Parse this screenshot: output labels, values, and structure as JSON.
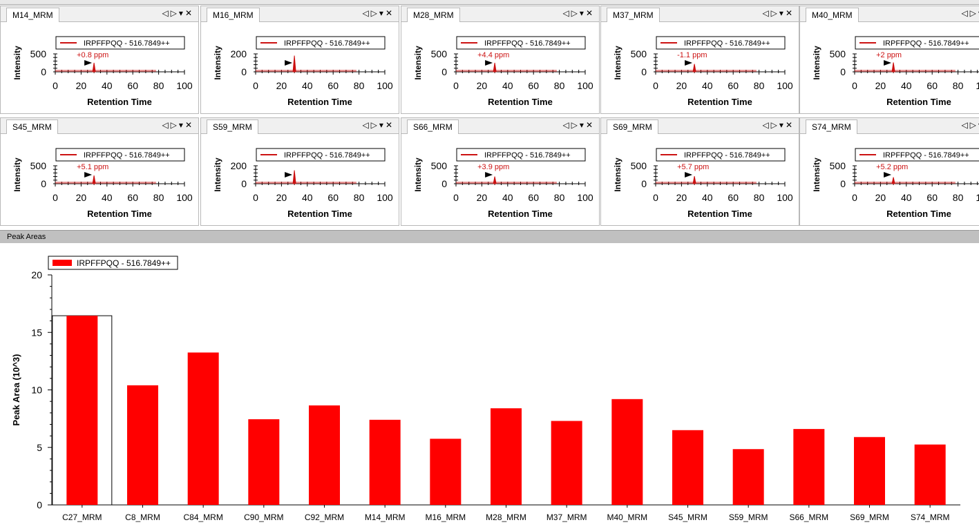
{
  "chromatograms": {
    "legend": "IRPFFPQQ - 516.7849++",
    "ylabel": "Intensity",
    "xlabel": "Retention Time",
    "xticks": [
      "0",
      "20",
      "40",
      "60",
      "80",
      "100"
    ],
    "series_color": "#cc1111",
    "panels": [
      {
        "name": "M14_MRM",
        "ymax": "500",
        "ppm": "+0.8 ppm",
        "peak_rt": 30,
        "peak_height": 250
      },
      {
        "name": "M16_MRM",
        "ymax": "200",
        "ppm": "",
        "peak_rt": 30,
        "peak_height": 180
      },
      {
        "name": "M28_MRM",
        "ymax": "500",
        "ppm": "+4.4 ppm",
        "peak_rt": 30,
        "peak_height": 250
      },
      {
        "name": "M37_MRM",
        "ymax": "500",
        "ppm": "-1.1 ppm",
        "peak_rt": 30,
        "peak_height": 220
      },
      {
        "name": "M40_MRM",
        "ymax": "500",
        "ppm": "+2 ppm",
        "peak_rt": 30,
        "peak_height": 260
      },
      {
        "name": "S45_MRM",
        "ymax": "500",
        "ppm": "+5.1 ppm",
        "peak_rt": 30,
        "peak_height": 230
      },
      {
        "name": "S59_MRM",
        "ymax": "200",
        "ppm": "",
        "peak_rt": 30,
        "peak_height": 150
      },
      {
        "name": "S66_MRM",
        "ymax": "500",
        "ppm": "+3.9 ppm",
        "peak_rt": 30,
        "peak_height": 200
      },
      {
        "name": "S69_MRM",
        "ymax": "500",
        "ppm": "+5.7 ppm",
        "peak_rt": 30,
        "peak_height": 210
      },
      {
        "name": "S74_MRM",
        "ymax": "500",
        "ppm": "+5.2 ppm",
        "peak_rt": 30,
        "peak_height": 180
      }
    ]
  },
  "peak_areas": {
    "title": "Peak Areas"
  },
  "chart_data": {
    "type": "bar",
    "legend": "IRPFFPQQ - 516.7849++",
    "ylabel": "Peak Area (10^3)",
    "xlabel": "",
    "ylim": [
      0,
      20
    ],
    "yticks": [
      "0",
      "5",
      "10",
      "15",
      "20"
    ],
    "color": "#ff0000",
    "selected": "C27_MRM",
    "categories": [
      "C27_MRM",
      "C8_MRM",
      "C84_MRM",
      "C90_MRM",
      "C92_MRM",
      "M14_MRM",
      "M16_MRM",
      "M28_MRM",
      "M37_MRM",
      "M40_MRM",
      "S45_MRM",
      "S59_MRM",
      "S66_MRM",
      "S69_MRM",
      "S74_MRM"
    ],
    "values": [
      16.45,
      10.4,
      13.25,
      7.45,
      8.65,
      7.4,
      5.75,
      8.4,
      7.3,
      9.2,
      6.5,
      4.85,
      6.6,
      5.9,
      5.25
    ]
  }
}
